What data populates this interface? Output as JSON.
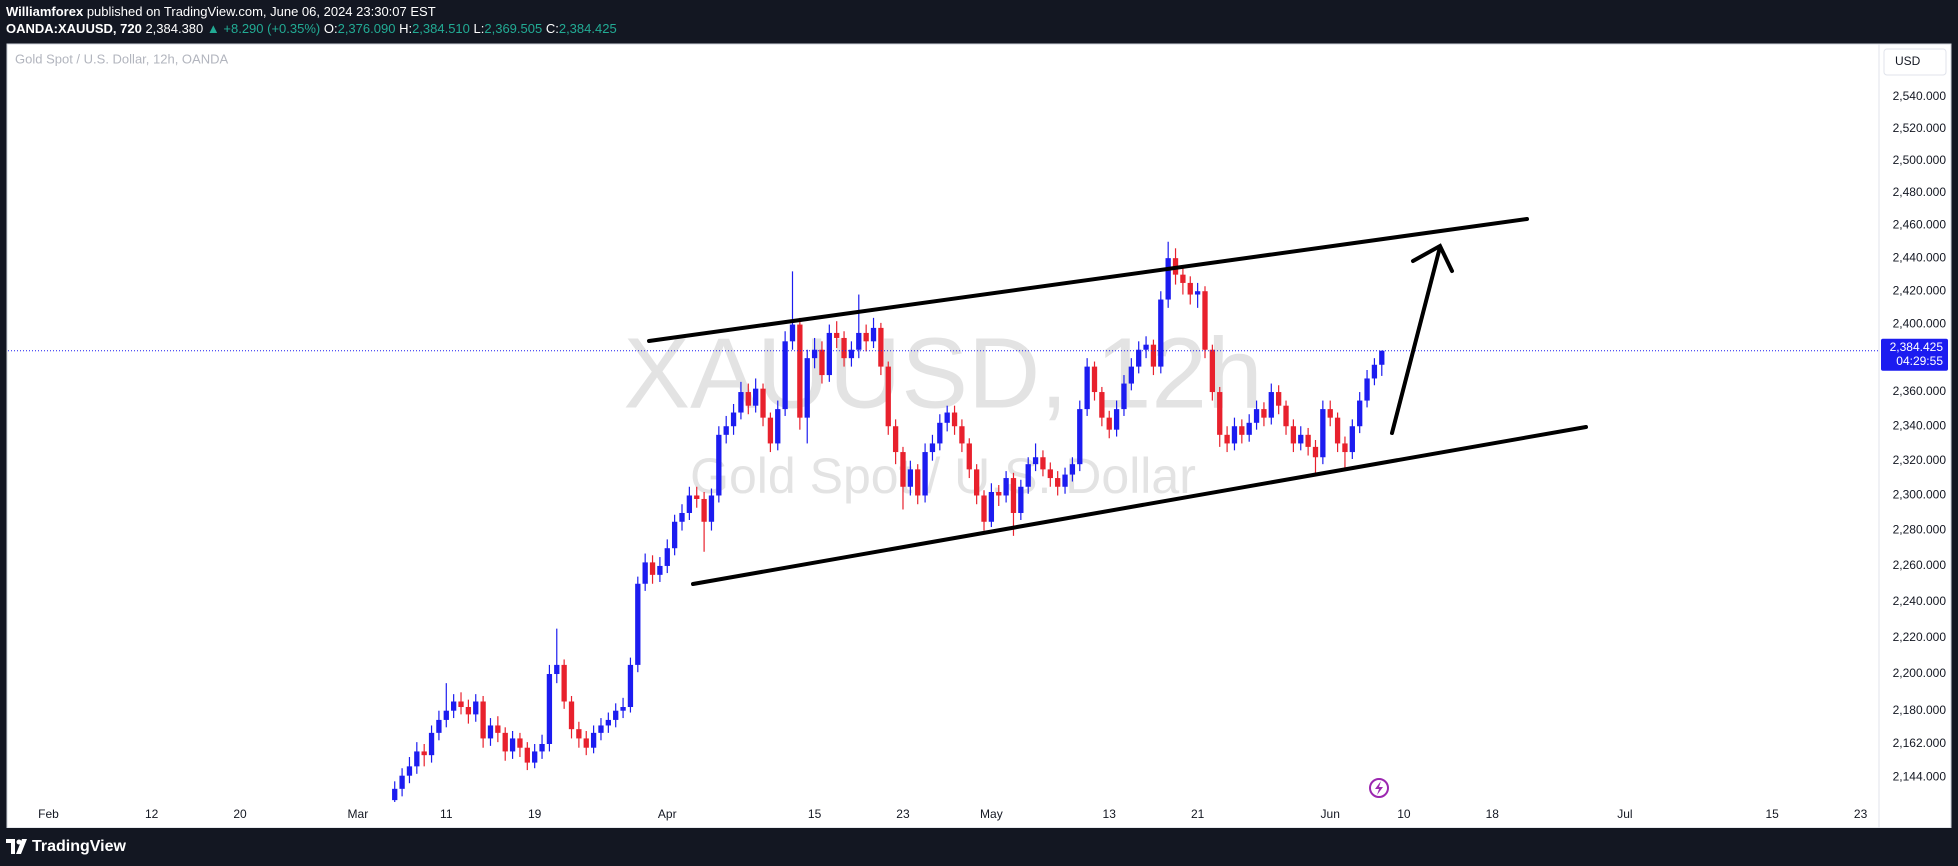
{
  "header": {
    "author": "Williamforex",
    "published": "published on TradingView.com, June 06, 2024 23:30:07 EST",
    "symbol": "OANDA:XAUUSD, 720",
    "last": "2,384.380",
    "change": "▲ +8.290 (+0.35%)",
    "ohlc": [
      {
        "label": "O:",
        "value": "2,376.090"
      },
      {
        "label": "H:",
        "value": "2,384.510"
      },
      {
        "label": "L:",
        "value": "2,369.505"
      },
      {
        "label": "C:",
        "value": "2,384.425"
      }
    ]
  },
  "chart_data": {
    "type": "candlestick",
    "title": "Gold Spot / U.S. Dollar, 12h, OANDA",
    "watermark": [
      "XAUUSD, 12h",
      "Gold Spot / U.S. Dollar"
    ],
    "currency": "USD",
    "up_color": "#1c1cf0",
    "down_color": "#e8212d",
    "log_scale": true,
    "grid": false,
    "x": [
      47,
      48,
      49,
      50,
      51,
      52,
      53,
      54,
      55,
      56,
      57,
      58,
      59,
      60,
      61,
      62,
      63,
      64,
      65,
      66,
      67,
      68,
      69,
      70,
      71,
      72,
      73,
      74,
      75,
      76,
      77,
      78,
      79,
      80,
      81,
      82,
      83,
      84,
      85,
      86,
      87,
      88,
      89,
      90,
      91,
      92,
      93,
      94,
      95,
      96,
      97,
      98,
      99,
      100,
      101,
      102,
      103,
      104,
      105,
      106,
      107,
      108,
      109,
      110,
      111,
      112,
      113,
      114,
      115,
      116,
      117,
      118,
      119,
      120,
      121,
      122,
      123,
      124,
      125,
      126,
      127,
      128,
      129,
      130,
      131,
      132,
      133,
      134,
      135,
      136,
      137,
      138,
      139,
      140,
      141,
      142,
      143,
      144,
      145,
      146,
      147,
      148,
      149,
      150,
      151,
      152,
      153,
      154,
      155,
      156,
      157,
      158,
      159,
      160,
      161,
      162,
      163,
      164,
      165,
      166,
      167,
      168,
      169,
      170,
      171,
      172,
      173,
      174,
      175,
      176,
      177,
      178,
      179,
      180,
      181
    ],
    "open": [
      2132,
      2138,
      2145,
      2150,
      2158,
      2156,
      2168,
      2175,
      2180,
      2185,
      2182,
      2178,
      2185,
      2165,
      2172,
      2168,
      2158,
      2165,
      2160,
      2152,
      2158,
      2162,
      2200,
      2205,
      2185,
      2170,
      2165,
      2160,
      2168,
      2172,
      2175,
      2180,
      2182,
      2205,
      2250,
      2262,
      2255,
      2260,
      2270,
      2285,
      2290,
      2300,
      2298,
      2285,
      2300,
      2335,
      2340,
      2348,
      2360,
      2352,
      2362,
      2345,
      2330,
      2350,
      2390,
      2400,
      2345,
      2380,
      2385,
      2370,
      2395,
      2392,
      2380,
      2385,
      2395,
      2390,
      2398,
      2375,
      2340,
      2325,
      2305,
      2315,
      2300,
      2325,
      2330,
      2342,
      2348,
      2340,
      2330,
      2315,
      2300,
      2285,
      2302,
      2300,
      2310,
      2290,
      2305,
      2318,
      2322,
      2315,
      2310,
      2305,
      2312,
      2318,
      2350,
      2375,
      2360,
      2345,
      2338,
      2350,
      2365,
      2375,
      2385,
      2388,
      2375,
      2415,
      2440,
      2430,
      2425,
      2418,
      2420,
      2385,
      2360,
      2335,
      2330,
      2340,
      2335,
      2342,
      2350,
      2345,
      2360,
      2352,
      2340,
      2330,
      2335,
      2328,
      2322,
      2350,
      2345,
      2330,
      2325,
      2340,
      2355,
      2368,
      2376.09
    ],
    "high": [
      2142,
      2149,
      2155,
      2163,
      2162,
      2172,
      2180,
      2195,
      2189,
      2190,
      2186,
      2189,
      2188,
      2176,
      2177,
      2171,
      2169,
      2168,
      2163,
      2162,
      2167,
      2205,
      2225,
      2208,
      2188,
      2174,
      2169,
      2172,
      2176,
      2179,
      2184,
      2187,
      2209,
      2254,
      2267,
      2266,
      2265,
      2275,
      2289,
      2295,
      2305,
      2305,
      2302,
      2304,
      2340,
      2346,
      2353,
      2366,
      2365,
      2368,
      2365,
      2348,
      2355,
      2396,
      2432,
      2404,
      2385,
      2392,
      2390,
      2400,
      2402,
      2396,
      2390,
      2418,
      2400,
      2404,
      2401,
      2378,
      2344,
      2328,
      2320,
      2318,
      2330,
      2335,
      2347,
      2352,
      2352,
      2344,
      2333,
      2318,
      2303,
      2307,
      2306,
      2314,
      2313,
      2309,
      2322,
      2330,
      2326,
      2319,
      2314,
      2316,
      2322,
      2355,
      2380,
      2378,
      2363,
      2349,
      2355,
      2370,
      2380,
      2390,
      2393,
      2391,
      2420,
      2450,
      2446,
      2435,
      2429,
      2425,
      2423,
      2388,
      2363,
      2340,
      2345,
      2344,
      2347,
      2355,
      2354,
      2365,
      2364,
      2355,
      2344,
      2340,
      2339,
      2332,
      2355,
      2355,
      2348,
      2334,
      2344,
      2360,
      2373,
      2380,
      2384.51
    ],
    "low": [
      2128,
      2134,
      2141,
      2146,
      2150,
      2152,
      2164,
      2171,
      2176,
      2178,
      2173,
      2174,
      2160,
      2161,
      2163,
      2153,
      2154,
      2155,
      2148,
      2149,
      2154,
      2158,
      2195,
      2181,
      2165,
      2160,
      2156,
      2157,
      2164,
      2168,
      2171,
      2176,
      2179,
      2201,
      2246,
      2250,
      2251,
      2256,
      2266,
      2280,
      2286,
      2293,
      2268,
      2280,
      2296,
      2330,
      2335,
      2344,
      2347,
      2348,
      2340,
      2325,
      2326,
      2346,
      2385,
      2338,
      2330,
      2374,
      2365,
      2366,
      2386,
      2375,
      2375,
      2380,
      2384,
      2386,
      2370,
      2335,
      2318,
      2292,
      2300,
      2295,
      2296,
      2320,
      2326,
      2337,
      2335,
      2325,
      2310,
      2295,
      2280,
      2282,
      2294,
      2296,
      2277,
      2286,
      2301,
      2314,
      2311,
      2305,
      2300,
      2301,
      2308,
      2314,
      2346,
      2355,
      2340,
      2333,
      2334,
      2346,
      2361,
      2371,
      2380,
      2370,
      2371,
      2410,
      2424,
      2418,
      2412,
      2410,
      2380,
      2355,
      2328,
      2325,
      2326,
      2330,
      2331,
      2338,
      2340,
      2341,
      2347,
      2335,
      2325,
      2326,
      2323,
      2312,
      2318,
      2340,
      2325,
      2315,
      2321,
      2336,
      2351,
      2364,
      2369.505
    ],
    "close": [
      2138,
      2145,
      2150,
      2158,
      2156,
      2168,
      2175,
      2180,
      2185,
      2182,
      2178,
      2185,
      2165,
      2172,
      2168,
      2158,
      2165,
      2160,
      2152,
      2158,
      2162,
      2200,
      2205,
      2185,
      2170,
      2165,
      2160,
      2168,
      2172,
      2175,
      2180,
      2182,
      2205,
      2250,
      2262,
      2255,
      2260,
      2270,
      2285,
      2290,
      2300,
      2298,
      2285,
      2300,
      2335,
      2340,
      2348,
      2360,
      2352,
      2362,
      2345,
      2330,
      2350,
      2390,
      2400,
      2345,
      2380,
      2385,
      2370,
      2395,
      2392,
      2380,
      2385,
      2395,
      2390,
      2398,
      2375,
      2340,
      2325,
      2305,
      2315,
      2300,
      2325,
      2330,
      2342,
      2348,
      2340,
      2330,
      2315,
      2300,
      2285,
      2302,
      2300,
      2310,
      2290,
      2305,
      2318,
      2322,
      2315,
      2310,
      2305,
      2312,
      2318,
      2350,
      2375,
      2360,
      2345,
      2338,
      2350,
      2365,
      2375,
      2385,
      2388,
      2375,
      2415,
      2440,
      2430,
      2425,
      2418,
      2420,
      2385,
      2360,
      2335,
      2330,
      2340,
      2335,
      2342,
      2350,
      2345,
      2360,
      2352,
      2340,
      2330,
      2335,
      2328,
      2322,
      2350,
      2345,
      2330,
      2325,
      2340,
      2355,
      2368,
      2376.09,
      2384.425
    ],
    "xlim": [
      -5.5,
      248.5
    ],
    "xticks": [
      {
        "value": 0,
        "label": "Feb"
      },
      {
        "value": 14,
        "label": "12"
      },
      {
        "value": 26,
        "label": "20"
      },
      {
        "value": 42,
        "label": "Mar"
      },
      {
        "value": 54,
        "label": "11"
      },
      {
        "value": 66,
        "label": "19"
      },
      {
        "value": 84,
        "label": "Apr"
      },
      {
        "value": 104,
        "label": "15"
      },
      {
        "value": 116,
        "label": "23"
      },
      {
        "value": 128,
        "label": "May"
      },
      {
        "value": 144,
        "label": "13"
      },
      {
        "value": 156,
        "label": "21"
      },
      {
        "value": 174,
        "label": "Jun"
      },
      {
        "value": 184,
        "label": "10"
      },
      {
        "value": 196,
        "label": "18"
      },
      {
        "value": 214,
        "label": "Jul"
      },
      {
        "value": 234,
        "label": "15"
      },
      {
        "value": 246,
        "label": "23"
      }
    ],
    "ylim": [
      2131,
      2573
    ],
    "yticks": [
      {
        "value": 2540,
        "label": "2,540.000"
      },
      {
        "value": 2520,
        "label": "2,520.000"
      },
      {
        "value": 2500,
        "label": "2,500.000"
      },
      {
        "value": 2480,
        "label": "2,480.000"
      },
      {
        "value": 2460,
        "label": "2,460.000"
      },
      {
        "value": 2440,
        "label": "2,440.000"
      },
      {
        "value": 2420,
        "label": "2,420.000"
      },
      {
        "value": 2400,
        "label": "2,400.000"
      },
      {
        "value": 2360,
        "label": "2,360.000"
      },
      {
        "value": 2340,
        "label": "2,340.000"
      },
      {
        "value": 2320,
        "label": "2,320.000"
      },
      {
        "value": 2300,
        "label": "2,300.000"
      },
      {
        "value": 2280,
        "label": "2,280.000"
      },
      {
        "value": 2260,
        "label": "2,260.000"
      },
      {
        "value": 2240,
        "label": "2,240.000"
      },
      {
        "value": 2220,
        "label": "2,220.000"
      },
      {
        "value": 2200,
        "label": "2,200.000"
      },
      {
        "value": 2180,
        "label": "2,180.000"
      },
      {
        "value": 2162,
        "label": "2,162.000"
      },
      {
        "value": 2144,
        "label": "2,144.000"
      }
    ],
    "last_price": {
      "value": 2384.425,
      "label": "2,384.425"
    },
    "countdown": "04:29:55"
  },
  "footer": {
    "brand": "TradingView"
  }
}
